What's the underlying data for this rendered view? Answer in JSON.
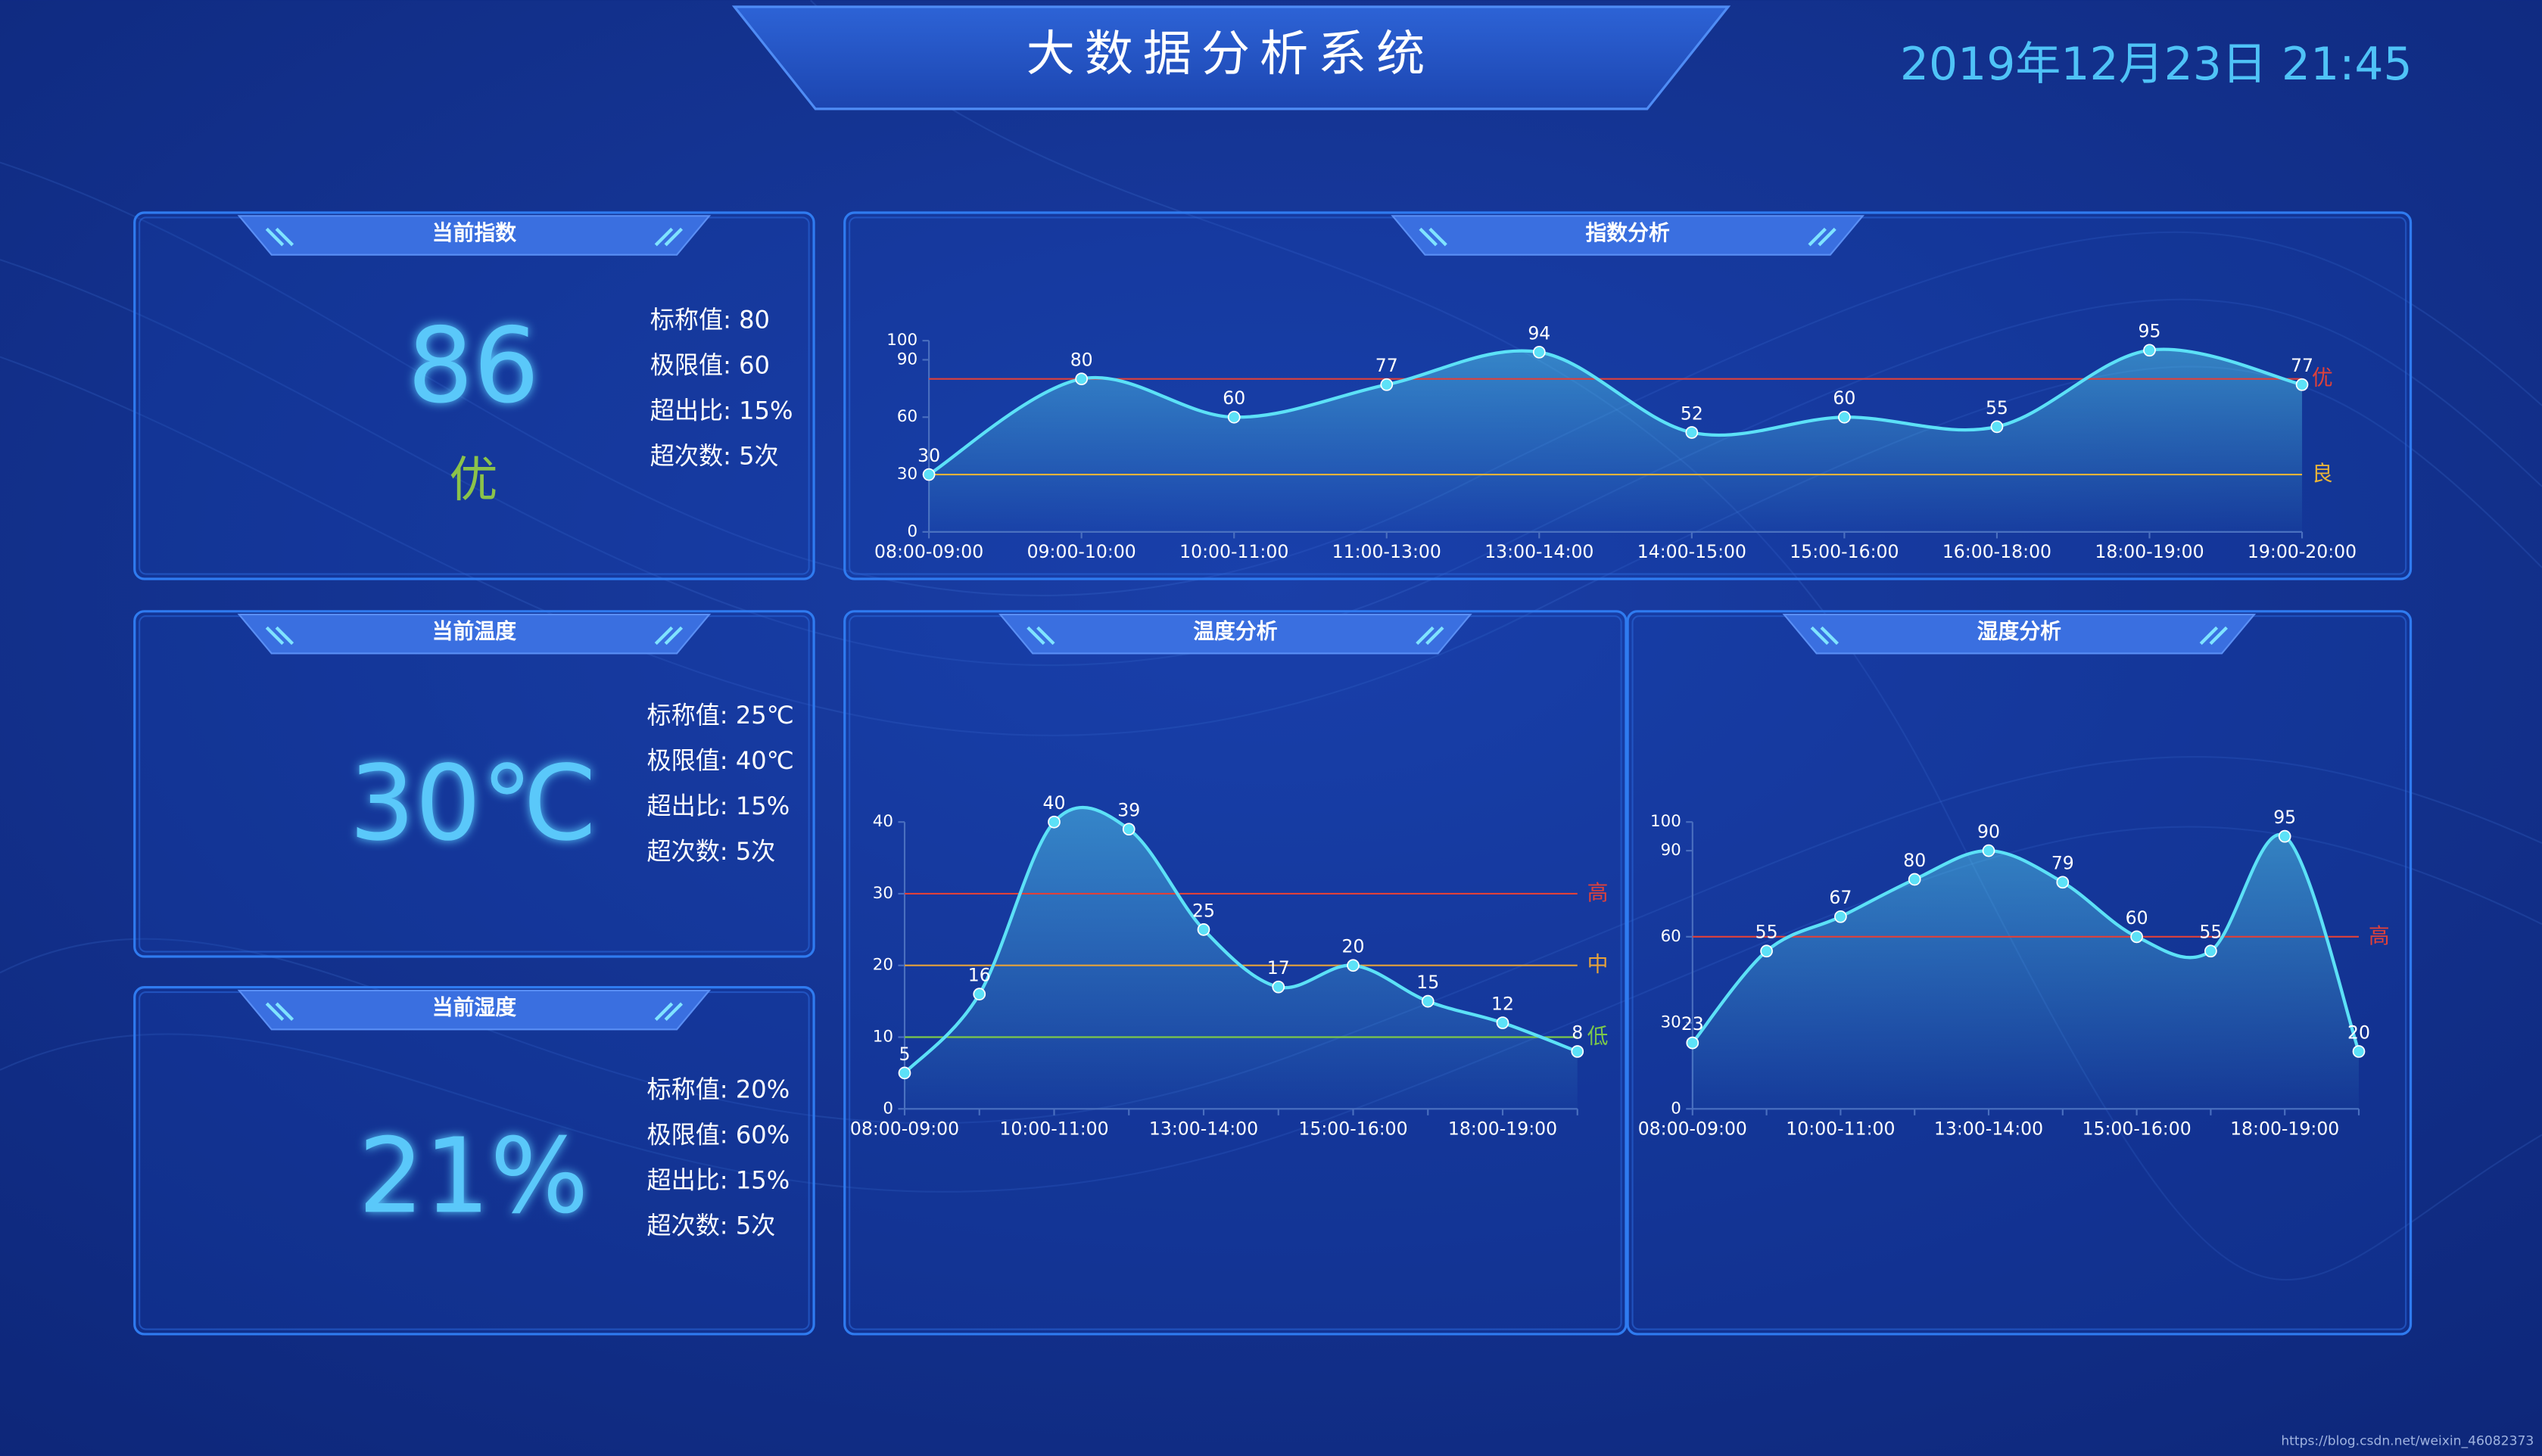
{
  "header": {
    "title": "大数据分析系统",
    "datetime": "2019年12月23日 21:45"
  },
  "panels": [
    {
      "title": "当前指数",
      "value": "86",
      "grade": "优",
      "stats": [
        "标称值: 80",
        "极限值: 60",
        "超出比: 15%",
        "超次数: 5次"
      ]
    },
    {
      "title": "当前温度",
      "value": "30℃",
      "stats": [
        "标称值: 25℃",
        "极限值: 40℃",
        "超出比: 15%",
        "超次数: 5次"
      ]
    },
    {
      "title": "当前湿度",
      "value": "21%",
      "stats": [
        "标称值: 20%",
        "极限值: 60%",
        "超出比: 15%",
        "超次数: 5次"
      ]
    }
  ],
  "chart_data": [
    {
      "type": "line",
      "title": "指数分析",
      "categories": [
        "08:00-09:00",
        "09:00-10:00",
        "10:00-11:00",
        "11:00-13:00",
        "13:00-14:00",
        "14:00-15:00",
        "15:00-16:00",
        "16:00-18:00",
        "18:00-19:00",
        "19:00-20:00"
      ],
      "values": [
        30,
        80,
        60,
        77,
        94,
        52,
        60,
        55,
        95,
        77
      ],
      "color": "#5ce1f7",
      "ylim": [
        0,
        100
      ],
      "yticks": [
        0,
        30,
        60,
        90,
        100
      ],
      "grid": false,
      "mark_lines": [
        {
          "value": 80,
          "label": "优",
          "color": "#e0413a"
        },
        {
          "value": 30,
          "label": "良",
          "color": "#e8b339"
        }
      ]
    },
    {
      "type": "line",
      "title": "温度分析",
      "categories": [
        "08:00-09:00",
        null,
        "10:00-11:00",
        null,
        "13:00-14:00",
        null,
        "15:00-16:00",
        null,
        "18:00-19:00",
        null
      ],
      "values": [
        5,
        16,
        40,
        39,
        25,
        17,
        20,
        15,
        12,
        8
      ],
      "color": "#5ce1f7",
      "ylim": [
        0,
        40
      ],
      "yticks": [
        0,
        10,
        20,
        30,
        40
      ],
      "grid": false,
      "mark_lines": [
        {
          "value": 30,
          "label": "高",
          "color": "#e0413a"
        },
        {
          "value": 20,
          "label": "中",
          "color": "#e8a339"
        },
        {
          "value": 10,
          "label": "低",
          "color": "#7cc84a"
        }
      ]
    },
    {
      "type": "line",
      "title": "湿度分析",
      "categories": [
        "08:00-09:00",
        null,
        "10:00-11:00",
        null,
        "13:00-14:00",
        null,
        "15:00-16:00",
        null,
        "18:00-19:00",
        null
      ],
      "values": [
        23,
        55,
        67,
        80,
        90,
        79,
        60,
        55,
        95,
        20
      ],
      "color": "#5ce1f7",
      "ylim": [
        0,
        100
      ],
      "yticks": [
        0,
        30,
        60,
        90,
        100
      ],
      "grid": false,
      "mark_lines": [
        {
          "value": 60,
          "label": "高",
          "color": "#e0413a"
        }
      ]
    }
  ],
  "watermark": "https://blog.csdn.net/weixin_46082373"
}
